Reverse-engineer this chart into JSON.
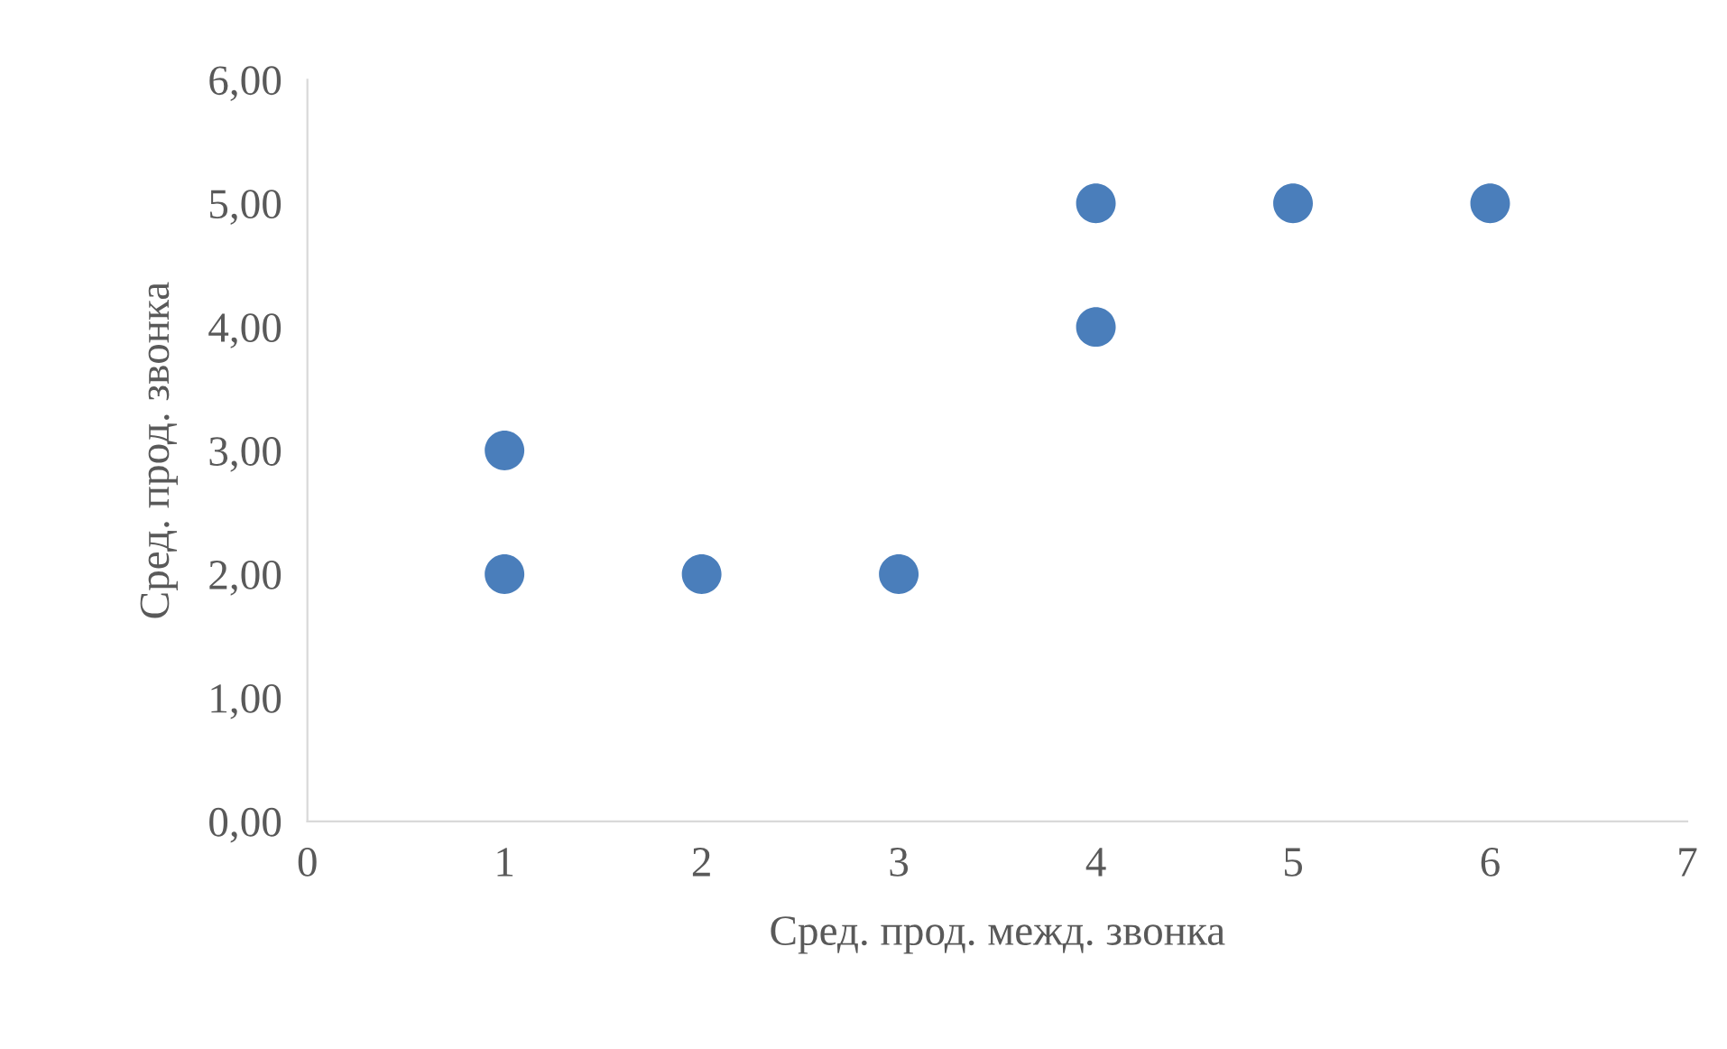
{
  "chart_data": {
    "type": "scatter",
    "xlabel": "Сред. прод. межд. звонка",
    "ylabel": "Сред. прод. звонка",
    "x": [
      1,
      1,
      2,
      3,
      4,
      4,
      5,
      6
    ],
    "values": [
      3,
      2,
      2,
      2,
      5,
      4,
      5,
      5
    ],
    "color": "#4a7ebb",
    "marker": "circle",
    "grid": false,
    "legend": false,
    "xlim": [
      0,
      7
    ],
    "xticks": [
      0,
      1,
      2,
      3,
      4,
      5,
      6,
      7
    ],
    "ylim": [
      0,
      6
    ],
    "yticks": [
      {
        "value": 0,
        "label": "0,00"
      },
      {
        "value": 1,
        "label": "1,00"
      },
      {
        "value": 2,
        "label": "2,00"
      },
      {
        "value": 3,
        "label": "3,00"
      },
      {
        "value": 4,
        "label": "4,00"
      },
      {
        "value": 5,
        "label": "5,00"
      },
      {
        "value": 6,
        "label": "6,00"
      }
    ]
  }
}
